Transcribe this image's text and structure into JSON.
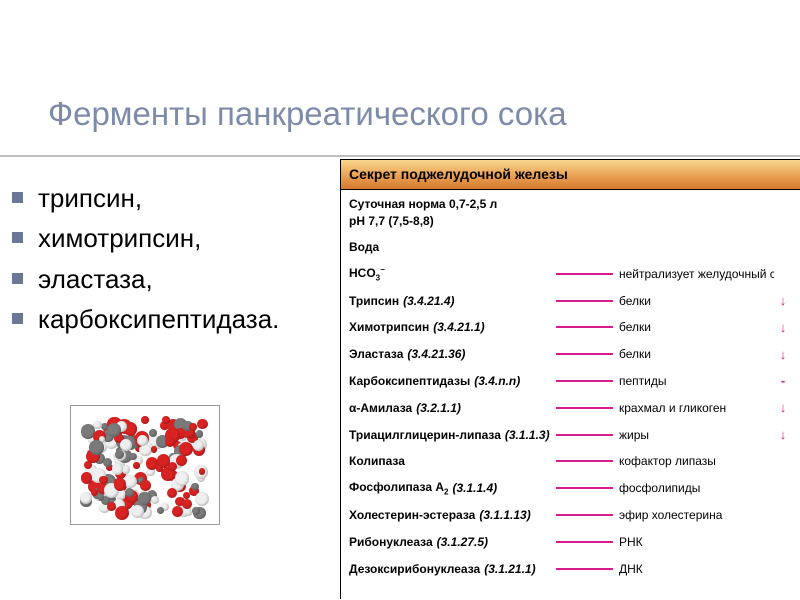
{
  "title": "Ферменты панкреатического сока",
  "title_color": "#7d8ba8",
  "bullet_color": "#6a7896",
  "bullets": [
    "трипсин,",
    "химотрипсин,",
    "эластаза,",
    "карбоксипептидаза."
  ],
  "panel_header": "Секрет поджелудочной железы",
  "header_gradient": [
    "#f9d78f",
    "#d27a30"
  ],
  "norm_line1": "Суточная норма 0,7-2,5 л",
  "norm_line2": "pH 7,7 (7,5-8,8)",
  "line_color": "#d81b8c",
  "components": [
    {
      "name": "Вода",
      "ec": "",
      "target": "",
      "mark": ""
    },
    {
      "name": "HCO",
      "ec": "",
      "target": "нейтрализует желудочный сок",
      "mark": "",
      "is_hco3": true
    },
    {
      "name": "Трипсин",
      "ec": "(3.4.21.4)",
      "target": "белки",
      "mark": "↓"
    },
    {
      "name": "Химотрипсин",
      "ec": "(3.4.21.1)",
      "target": "белки",
      "mark": "↓"
    },
    {
      "name": "Эластаза",
      "ec": "(3.4.21.36)",
      "target": "белки",
      "mark": "↓"
    },
    {
      "name": "Карбоксипептидазы",
      "ec": "(3.4.n.n)",
      "target": "пептиды",
      "mark": "-"
    },
    {
      "name": "α-Амилаза",
      "ec": "(3.2.1.1)",
      "target": "крахмал и гликоген",
      "mark": "↓"
    },
    {
      "name": "Триацилглицерин-липаза",
      "ec": "(3.1.1.3)",
      "target": "жиры",
      "mark": "↓"
    },
    {
      "name": "Колипаза",
      "ec": "",
      "target": "кофактор липазы",
      "mark": ""
    },
    {
      "name": "Фосфолипаза A",
      "ec": "(3.1.1.4)",
      "target": "фосфолипиды",
      "mark": "",
      "is_pla2": true
    },
    {
      "name": "Холестерин-эстераза",
      "ec": "(3.1.1.13)",
      "target": "эфир холестерина",
      "mark": ""
    },
    {
      "name": "Рибонуклеаза",
      "ec": "(3.1.27.5)",
      "target": "РНК",
      "mark": ""
    },
    {
      "name": "Дезоксирибонуклеаза",
      "ec": "(3.1.21.1)",
      "target": "ДНК",
      "mark": ""
    }
  ],
  "molecule_colors": {
    "red": "#d92323",
    "white": "#efefef",
    "grey": "#7a7a7a",
    "border": "#999999"
  }
}
